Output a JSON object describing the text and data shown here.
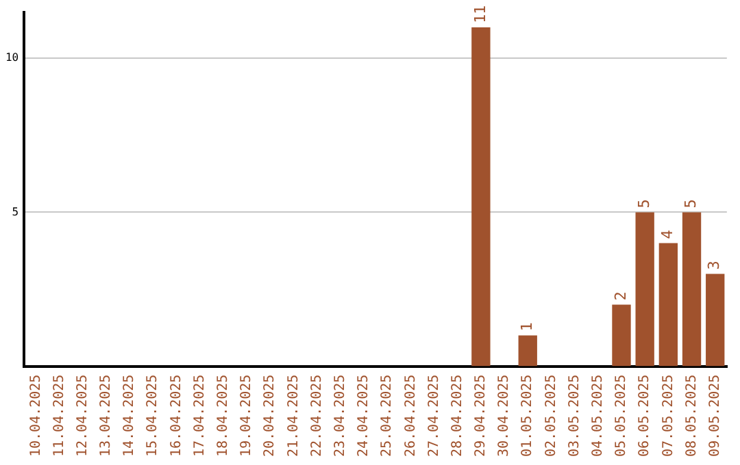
{
  "chart_data": {
    "type": "bar",
    "categories": [
      "10.04.2025",
      "11.04.2025",
      "12.04.2025",
      "13.04.2025",
      "14.04.2025",
      "15.04.2025",
      "16.04.2025",
      "17.04.2025",
      "18.04.2025",
      "19.04.2025",
      "20.04.2025",
      "21.04.2025",
      "22.04.2025",
      "23.04.2025",
      "24.04.2025",
      "25.04.2025",
      "26.04.2025",
      "27.04.2025",
      "28.04.2025",
      "29.04.2025",
      "30.04.2025",
      "01.05.2025",
      "02.05.2025",
      "03.05.2025",
      "04.05.2025",
      "05.05.2025",
      "06.05.2025",
      "07.05.2025",
      "08.05.2025",
      "09.05.2025"
    ],
    "values": [
      0,
      0,
      0,
      0,
      0,
      0,
      0,
      0,
      0,
      0,
      0,
      0,
      0,
      0,
      0,
      0,
      0,
      0,
      0,
      11,
      0,
      1,
      0,
      0,
      0,
      2,
      5,
      4,
      5,
      3
    ],
    "value_labels": [
      null,
      null,
      null,
      null,
      null,
      null,
      null,
      null,
      null,
      null,
      null,
      null,
      null,
      null,
      null,
      null,
      null,
      null,
      null,
      "11",
      null,
      "1",
      null,
      null,
      null,
      "2",
      "5",
      "4",
      "5",
      "3"
    ],
    "color": "#a0522d",
    "ylim": [
      0,
      11.5
    ],
    "yticks": [
      5,
      10
    ],
    "grid": "y",
    "legend": false
  }
}
